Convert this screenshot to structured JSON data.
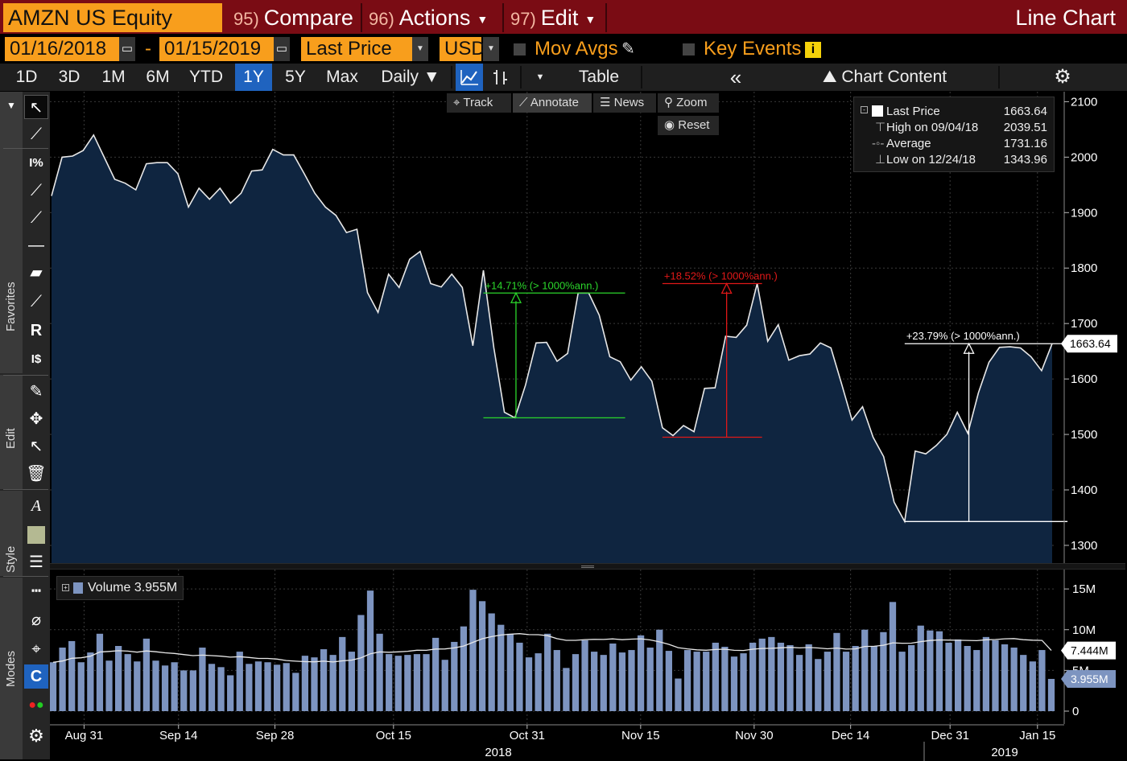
{
  "toolbar": {
    "ticker": "AMZN US Equity",
    "compare_num": "95)",
    "compare": "Compare",
    "actions_num": "96)",
    "actions": "Actions",
    "edit_num": "97)",
    "edit": "Edit",
    "title": "Line Chart"
  },
  "settings": {
    "start_date": "01/16/2018",
    "dash": "-",
    "end_date": "01/15/2019",
    "field": "Last Price",
    "currency": "USD",
    "mov_avgs": "Mov Avgs",
    "key_events": "Key Events"
  },
  "periods": {
    "items": [
      "1D",
      "3D",
      "1M",
      "6M",
      "YTD",
      "1Y",
      "5Y",
      "Max"
    ],
    "active": "1Y",
    "freq": "Daily",
    "table": "Table",
    "chart_content": "Chart Content"
  },
  "sidebar": {
    "favorites": "Favorites",
    "edit": "Edit",
    "style": "Style",
    "modes": "Modes"
  },
  "annotate_bar": {
    "track": "Track",
    "annotate": "Annotate",
    "news": "News",
    "zoom": "Zoom",
    "reset": "Reset"
  },
  "legend": {
    "last_label": "Last Price",
    "last_value": "1663.64",
    "high_label": "High on 09/04/18",
    "high_value": "2039.51",
    "avg_label": "Average",
    "avg_value": "1731.16",
    "low_label": "Low on 12/24/18",
    "low_value": "1343.96"
  },
  "volume_legend": {
    "label": "Volume 3.955M"
  },
  "colors": {
    "accent": "#f89e1c",
    "header": "#7a0c14",
    "active_period": "#1f63bf",
    "price_line": "#e8e8e8",
    "area_fill": "#0f2540",
    "volume_bar": "#7d94c0",
    "annot_green": "#2bd62b",
    "annot_red": "#e01818",
    "annot_white": "#ffffff"
  },
  "chart_data": [
    {
      "type": "area",
      "series": [
        {
          "name": "Last Price",
          "last": 1663.64
        }
      ],
      "x_tick_labels": [
        "Aug 31",
        "Sep 14",
        "Sep 28",
        "Oct 15",
        "Oct 31",
        "Nov 15",
        "Nov 30",
        "Dec 14",
        "Dec 31",
        "Jan 15"
      ],
      "year_labels": [
        "2018",
        "2019"
      ],
      "y_ticks": [
        1300,
        1400,
        1500,
        1600,
        1700,
        1800,
        1900,
        2000,
        2100
      ],
      "ylim": [
        1268,
        2118
      ],
      "values": [
        1930,
        2000,
        2002,
        2012,
        2040,
        2000,
        1960,
        1953,
        1941,
        1988,
        1990,
        1990,
        1970,
        1910,
        1944,
        1924,
        1944,
        1917,
        1935,
        1975,
        1977,
        2014,
        2004,
        2004,
        1970,
        1935,
        1910,
        1895,
        1864,
        1870,
        1756,
        1720,
        1789,
        1765,
        1816,
        1830,
        1772,
        1766,
        1789,
        1765,
        1660,
        1796,
        1656,
        1540,
        1530,
        1589,
        1665,
        1666,
        1632,
        1646,
        1755,
        1755,
        1715,
        1640,
        1631,
        1598,
        1622,
        1596,
        1512,
        1498,
        1516,
        1505,
        1583,
        1584,
        1677,
        1675,
        1697,
        1772,
        1668,
        1698,
        1634,
        1642,
        1645,
        1665,
        1656,
        1592,
        1526,
        1550,
        1495,
        1460,
        1378,
        1343,
        1470,
        1465,
        1480,
        1500,
        1540,
        1502,
        1575,
        1630,
        1657,
        1658,
        1656,
        1640,
        1615,
        1663.64
      ],
      "annotations": [
        {
          "text": "+14.71% (> 1000%ann.)",
          "color": "green",
          "from": 1530,
          "to": 1755
        },
        {
          "text": "+18.52% (> 1000%ann.)",
          "color": "red",
          "from": 1495,
          "to": 1772
        },
        {
          "text": "+23.79% (> 1000%ann.)",
          "color": "white",
          "from": 1343,
          "to": 1663.64
        }
      ],
      "last_label": "1663.64"
    },
    {
      "type": "bar",
      "series": [
        {
          "name": "Volume",
          "last": "3.955M"
        },
        {
          "name": "Volume moving average",
          "last": "7.444M"
        }
      ],
      "y_tick_labels": [
        "15M",
        "10M",
        "5M",
        "0"
      ],
      "y_ticks": [
        15,
        10,
        5,
        0
      ],
      "ylim": [
        0,
        16
      ],
      "values": [
        6.0,
        7.8,
        8.6,
        6.0,
        7.2,
        9.5,
        6.2,
        8.0,
        7.0,
        6.1,
        8.9,
        6.2,
        5.6,
        6.0,
        5.0,
        5.0,
        7.8,
        5.8,
        5.4,
        4.4,
        7.3,
        5.8,
        6.1,
        6.0,
        5.7,
        5.9,
        4.7,
        6.8,
        6.6,
        7.6,
        6.9,
        9.1,
        7.3,
        11.8,
        14.8,
        9.5,
        7.0,
        6.8,
        6.9,
        7.0,
        7.0,
        9.0,
        6.3,
        8.5,
        10.4,
        14.9,
        13.5,
        12.0,
        10.6,
        9.5,
        8.4,
        6.6,
        7.1,
        9.5,
        7.5,
        5.3,
        7.0,
        8.7,
        7.3,
        6.9,
        8.3,
        7.2,
        7.5,
        9.3,
        7.8,
        10.0,
        7.4,
        4.0,
        7.5,
        7.3,
        7.3,
        8.4,
        7.9,
        6.7,
        7.1,
        8.4,
        8.9,
        9.1,
        8.4,
        8.1,
        6.9,
        8.2,
        6.4,
        7.3,
        9.6,
        7.3,
        8.0,
        10.0,
        8.0,
        9.7,
        13.4,
        7.3,
        8.1,
        10.5,
        9.9,
        9.8,
        8.4,
        8.8,
        8.0,
        7.5,
        9.1,
        8.7,
        8.2,
        7.8,
        6.9,
        6.1,
        7.5,
        3.955
      ],
      "moving_average_start": 6.0,
      "moving_average_end": 7.444
    }
  ]
}
